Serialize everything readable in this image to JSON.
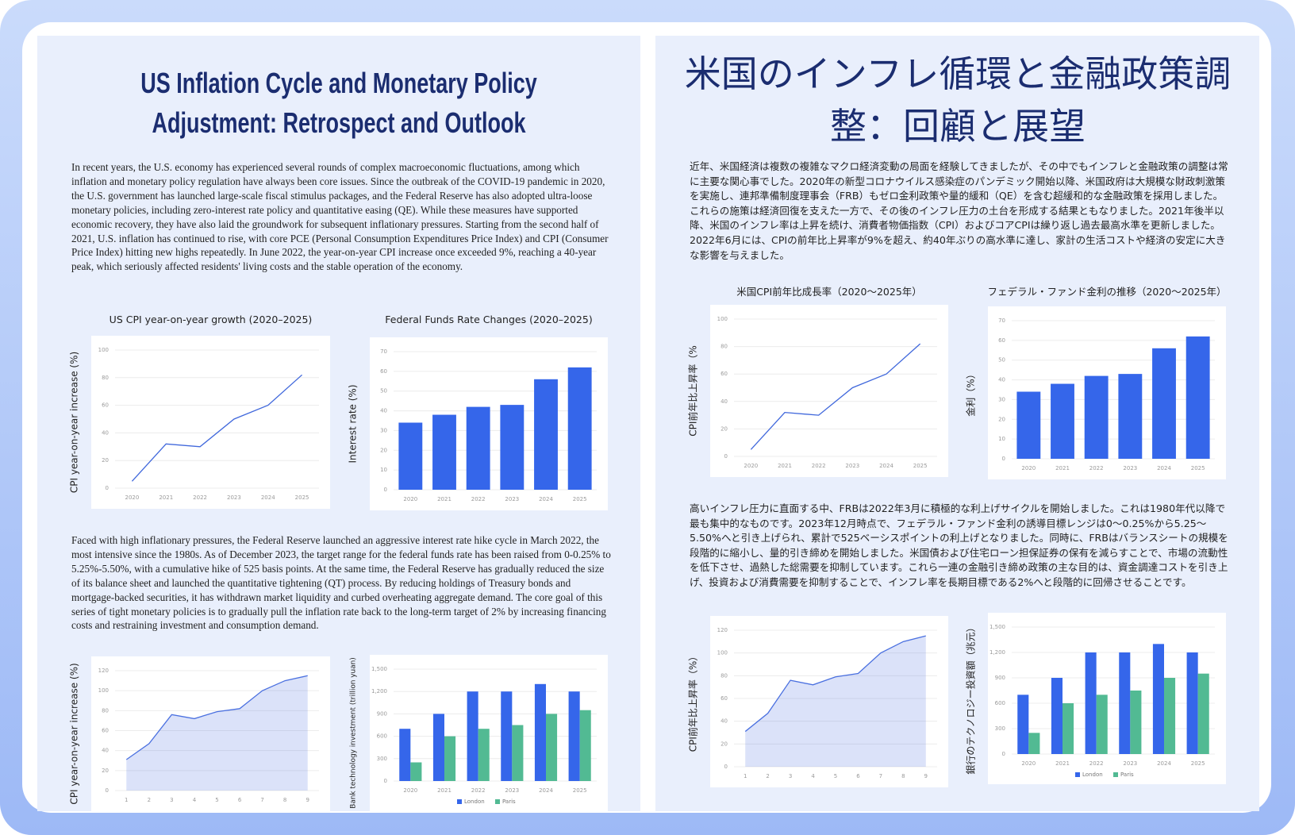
{
  "documents": [
    {
      "title": "US Inflation Cycle and Monetary Policy Adjustment: Retrospect and Outlook",
      "paragraphs": [
        "In recent years, the U.S. economy has experienced several rounds of complex macroeconomic fluctuations, among which inflation and monetary policy regulation have always been core issues. Since the outbreak of the COVID-19 pandemic in 2020, the U.S. government has launched large-scale fiscal stimulus packages, and the Federal Reserve has also adopted ultra-loose monetary policies, including zero-interest rate policy and quantitative easing (QE). While these measures have supported economic recovery, they have also laid the groundwork for subsequent inflationary pressures. Starting from the second half of 2021, U.S. inflation has continued to rise, with core PCE (Personal Consumption Expenditures Price Index) and CPI (Consumer Price Index) hitting new highs repeatedly. In June 2022, the year-on-year CPI increase once exceeded 9%, reaching a 40-year peak, which seriously affected residents' living costs and the stable operation of the economy.",
        "Faced with high inflationary pressures, the Federal Reserve launched an aggressive interest rate hike cycle in March 2022, the most intensive since the 1980s. As of December 2023, the target range for the federal funds rate has been raised from 0-0.25% to 5.25%-5.50%, with a cumulative hike of 525 basis points. At the same time, the Federal Reserve has gradually reduced the size of its balance sheet and launched the quantitative tightening (QT) process. By reducing holdings of Treasury bonds and mortgage-backed securities, it has withdrawn market liquidity and curbed overheating aggregate demand. The core goal of this series of tight monetary policies is to gradually pull the inflation rate back to the long-term target of 2% by increasing financing costs and restraining investment and consumption demand."
      ]
    },
    {
      "title": "米国のインフレ循環と金融政策調整：回顧と展望",
      "paragraphs": [
        "近年、米国経済は複数の複雑なマクロ経済変動の局面を経験してきましたが、その中でもインフレと金融政策の調整は常に主要な関心事でした。2020年の新型コロナウイルス感染症のパンデミック開始以降、米国政府は大規模な財政刺激策を実施し、連邦準備制度理事会（FRB）もゼロ金利政策や量的緩和（QE）を含む超緩和的な金融政策を採用しました。これらの施策は経済回復を支えた一方で、その後のインフレ圧力の土台を形成する結果ともなりました。2021年後半以降、米国のインフレ率は上昇を続け、消費者物価指数（CPI）およびコアCPIは繰り返し過去最高水準を更新しました。2022年6月には、CPIの前年比上昇率が9%を超え、約40年ぶりの高水準に達し、家計の生活コストや経済の安定に大きな影響を与えました。",
        "高いインフレ圧力に直面する中、FRBは2022年3月に積極的な利上げサイクルを開始しました。これは1980年代以降で最も集中的なものです。2023年12月時点で、フェデラル・ファンド金利の誘導目標レンジは0～0.25%から5.25～5.50%へと引き上げられ、累計で525ベーシスポイントの利上げとなりました。同時に、FRBはバランスシートの規模を段階的に縮小し、量的引き締めを開始しました。米国債および住宅ローン担保証券の保有を減らすことで、市場の流動性を低下させ、過熱した総需要を抑制しています。これら一連の金融引き締め政策の主な目的は、資金調達コストを引き上げ、投資および消費需要を抑制することで、インフレ率を長期目標である2%へと段階的に回帰させることです。"
      ]
    }
  ],
  "chart_data": [
    {
      "type": "line",
      "title": "US CPI year-on-year growth (2020–2025)",
      "y_label": "CPI year-on-year increase (%)",
      "categories": [
        "2020",
        "2021",
        "2022",
        "2023",
        "2024",
        "2025"
      ],
      "values": [
        5,
        32,
        30,
        50,
        60,
        82
      ],
      "color": "#4068dc",
      "ylim": [
        0,
        100
      ],
      "yticks": [
        0,
        20,
        40,
        60,
        80,
        100
      ],
      "grid": true
    },
    {
      "type": "bar",
      "title": "Federal Funds Rate Changes (2020–2025)",
      "y_label": "Interest rate (%)",
      "categories": [
        "2020",
        "2021",
        "2022",
        "2023",
        "2024",
        "2025"
      ],
      "values": [
        34,
        38,
        42,
        43,
        56,
        62
      ],
      "color": "#3566ea",
      "ylim": [
        0,
        70
      ],
      "yticks": [
        0,
        10,
        20,
        30,
        40,
        50,
        60,
        70
      ],
      "grid": true
    },
    {
      "type": "area",
      "y_label": "CPI year-on-year increase (%)",
      "categories": [
        "1",
        "2",
        "3",
        "4",
        "5",
        "6",
        "7",
        "8",
        "9"
      ],
      "values": [
        31,
        47,
        76,
        72,
        79,
        82,
        100,
        110,
        115
      ],
      "color": "#4a70e0",
      "ylim": [
        0,
        120
      ],
      "yticks": [
        0,
        20,
        40,
        60,
        80,
        100,
        120
      ],
      "grid": true
    },
    {
      "type": "bar",
      "y_label": "Bank technology investment (trillion yuan)",
      "categories": [
        "2020",
        "2021",
        "2022",
        "2023",
        "2024",
        "2025"
      ],
      "series": [
        {
          "name": "London",
          "color": "#3566ea",
          "values": [
            700,
            900,
            1200,
            1200,
            1300,
            1200
          ]
        },
        {
          "name": "Paris",
          "color": "#52ba93",
          "values": [
            250,
            600,
            700,
            750,
            900,
            950
          ]
        }
      ],
      "ylim": [
        0,
        1500
      ],
      "yticks": [
        0,
        300,
        600,
        900,
        {
          "value": 1200,
          "label": "1,200"
        },
        {
          "value": 1500,
          "label": "1,500"
        }
      ],
      "grid": true,
      "legend": "bottom"
    },
    {
      "type": "line",
      "title": "米国CPI前年比成長率（2020～2025年）",
      "y_label": "CPI前年比上昇率（%",
      "categories": [
        "2020",
        "2021",
        "2022",
        "2023",
        "2024",
        "2025"
      ],
      "values": [
        5,
        32,
        30,
        50,
        60,
        82
      ],
      "color": "#4068dc",
      "ylim": [
        0,
        100
      ],
      "yticks": [
        0,
        20,
        40,
        60,
        80,
        100
      ],
      "grid": true
    },
    {
      "type": "bar",
      "title": "フェデラル・ファンド金利の推移（2020～2025年）",
      "y_label": "金利（%）",
      "categories": [
        "2020",
        "2021",
        "2022",
        "2023",
        "2024",
        "2025"
      ],
      "values": [
        34,
        38,
        42,
        43,
        56,
        62
      ],
      "color": "#3566ea",
      "ylim": [
        0,
        70
      ],
      "yticks": [
        0,
        10,
        20,
        30,
        40,
        50,
        60,
        70
      ],
      "grid": true
    },
    {
      "type": "area",
      "y_label": "CPI前年比上昇率（%）",
      "categories": [
        "1",
        "2",
        "3",
        "4",
        "5",
        "6",
        "7",
        "8",
        "9"
      ],
      "values": [
        31,
        47,
        76,
        72,
        79,
        82,
        100,
        110,
        115
      ],
      "color": "#4a70e0",
      "ylim": [
        0,
        120
      ],
      "yticks": [
        0,
        20,
        40,
        60,
        80,
        100,
        120
      ],
      "grid": true
    },
    {
      "type": "bar",
      "y_label": "銀行のテクノロジー投資額（兆元）",
      "categories": [
        "2020",
        "2021",
        "2022",
        "2023",
        "2024",
        "2025"
      ],
      "series": [
        {
          "name": "London",
          "color": "#3566ea",
          "values": [
            700,
            900,
            1200,
            1200,
            1300,
            1200
          ]
        },
        {
          "name": "Paris",
          "color": "#52ba93",
          "values": [
            250,
            600,
            700,
            750,
            900,
            950
          ]
        }
      ],
      "ylim": [
        0,
        1500
      ],
      "yticks": [
        0,
        300,
        600,
        900,
        {
          "value": 1200,
          "label": "1,200"
        },
        {
          "value": 1500,
          "label": "1,500"
        }
      ],
      "grid": true,
      "legend": "bottom"
    }
  ]
}
